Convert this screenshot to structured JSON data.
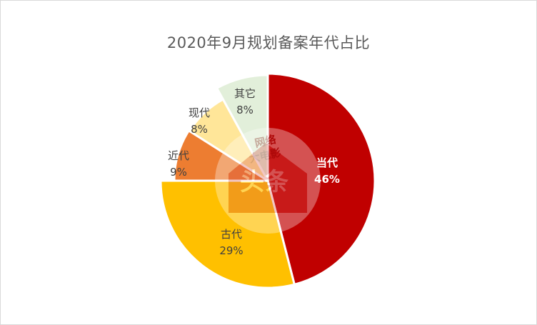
{
  "chart_data": {
    "type": "pie",
    "title": "2020年9月规划备案年代占比",
    "categories": [
      "当代",
      "古代",
      "近代",
      "现代",
      "其它"
    ],
    "values": [
      46,
      29,
      9,
      8,
      8
    ],
    "percent_labels": [
      "46%",
      "29%",
      "9%",
      "8%",
      "8%"
    ],
    "colors": [
      "#c00000",
      "#ffc000",
      "#ed7d31",
      "#ffe699",
      "#e2efda"
    ],
    "label_colors": [
      "#ffffff",
      "#404040",
      "#404040",
      "#404040",
      "#404040"
    ],
    "bold_labels": [
      true,
      false,
      false,
      false,
      false
    ],
    "start_angle_deg": 0,
    "direction": "clockwise",
    "legend": "none"
  },
  "watermark": {
    "text_lines": [
      "网络",
      "大电影"
    ],
    "badge_text": "头条"
  }
}
